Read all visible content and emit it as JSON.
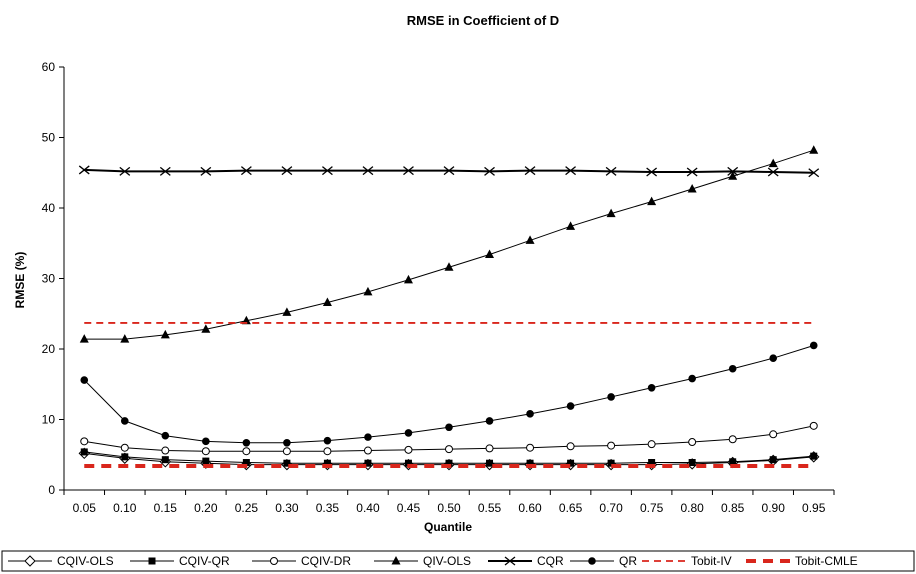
{
  "chart_data": {
    "type": "line",
    "title": "RMSE in Coefficient of D",
    "xlabel": "Quantile",
    "ylabel": "RMSE (%)",
    "ylim": [
      0,
      60
    ],
    "yticks": [
      "0",
      "10",
      "20",
      "30",
      "40",
      "50",
      "60"
    ],
    "categories": [
      "0.05",
      "0.10",
      "0.15",
      "0.20",
      "0.25",
      "0.30",
      "0.35",
      "0.40",
      "0.45",
      "0.50",
      "0.55",
      "0.60",
      "0.65",
      "0.70",
      "0.75",
      "0.80",
      "0.85",
      "0.90",
      "0.95"
    ],
    "grid": false,
    "legend_position": "bottom",
    "series": [
      {
        "name": "CQIV-OLS",
        "marker": "diamond-open",
        "line": "solid",
        "color": "#000000",
        "values": [
          5.2,
          4.5,
          4.0,
          3.8,
          3.6,
          3.6,
          3.6,
          3.6,
          3.6,
          3.6,
          3.6,
          3.6,
          3.6,
          3.6,
          3.6,
          3.7,
          3.9,
          4.2,
          4.7
        ]
      },
      {
        "name": "CQIV-QR",
        "marker": "square-filled",
        "line": "solid",
        "color": "#000000",
        "values": [
          5.4,
          4.7,
          4.3,
          4.1,
          3.9,
          3.8,
          3.8,
          3.8,
          3.8,
          3.8,
          3.8,
          3.8,
          3.8,
          3.8,
          3.9,
          3.9,
          4.0,
          4.3,
          4.8
        ]
      },
      {
        "name": "CQIV-DR",
        "marker": "circle-open",
        "line": "solid",
        "color": "#000000",
        "values": [
          6.9,
          6.0,
          5.6,
          5.5,
          5.5,
          5.5,
          5.5,
          5.6,
          5.7,
          5.8,
          5.9,
          6.0,
          6.2,
          6.3,
          6.5,
          6.8,
          7.2,
          7.9,
          9.1
        ]
      },
      {
        "name": "QIV-OLS",
        "marker": "triangle-filled",
        "line": "solid",
        "color": "#000000",
        "values": [
          21.4,
          21.4,
          22.0,
          22.8,
          24.0,
          25.2,
          26.6,
          28.1,
          29.8,
          31.6,
          33.4,
          35.4,
          37.4,
          39.2,
          40.9,
          42.7,
          44.5,
          46.3,
          48.2
        ]
      },
      {
        "name": "CQR",
        "marker": "x",
        "line": "solid-thick",
        "color": "#000000",
        "values": [
          45.4,
          45.2,
          45.2,
          45.2,
          45.3,
          45.3,
          45.3,
          45.3,
          45.3,
          45.3,
          45.2,
          45.3,
          45.3,
          45.2,
          45.1,
          45.1,
          45.2,
          45.1,
          45.0
        ]
      },
      {
        "name": "QR",
        "marker": "circle-filled",
        "line": "solid",
        "color": "#000000",
        "values": [
          15.6,
          9.8,
          7.7,
          6.9,
          6.7,
          6.7,
          7.0,
          7.5,
          8.1,
          8.9,
          9.8,
          10.8,
          11.9,
          13.2,
          14.5,
          15.8,
          17.2,
          18.7,
          20.5
        ]
      },
      {
        "name": "Tobit-IV",
        "marker": "none",
        "line": "dashed",
        "color": "#d9261c",
        "values": [
          23.7,
          23.7,
          23.7,
          23.7,
          23.7,
          23.7,
          23.7,
          23.7,
          23.7,
          23.7,
          23.7,
          23.7,
          23.7,
          23.7,
          23.7,
          23.7,
          23.7,
          23.7,
          23.7
        ]
      },
      {
        "name": "Tobit-CMLE",
        "marker": "none",
        "line": "dashed-thick",
        "color": "#d9261c",
        "values": [
          3.4,
          3.4,
          3.4,
          3.4,
          3.4,
          3.4,
          3.4,
          3.4,
          3.4,
          3.4,
          3.4,
          3.4,
          3.4,
          3.4,
          3.4,
          3.4,
          3.4,
          3.4,
          3.4
        ]
      }
    ]
  }
}
